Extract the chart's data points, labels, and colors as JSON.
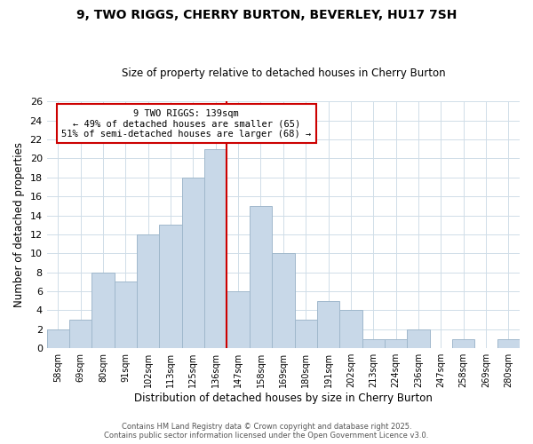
{
  "title": "9, TWO RIGGS, CHERRY BURTON, BEVERLEY, HU17 7SH",
  "subtitle": "Size of property relative to detached houses in Cherry Burton",
  "xlabel": "Distribution of detached houses by size in Cherry Burton",
  "ylabel": "Number of detached properties",
  "bin_labels": [
    "58sqm",
    "69sqm",
    "80sqm",
    "91sqm",
    "102sqm",
    "113sqm",
    "125sqm",
    "136sqm",
    "147sqm",
    "158sqm",
    "169sqm",
    "180sqm",
    "191sqm",
    "202sqm",
    "213sqm",
    "224sqm",
    "236sqm",
    "247sqm",
    "258sqm",
    "269sqm",
    "280sqm"
  ],
  "bar_heights": [
    2,
    3,
    8,
    7,
    12,
    13,
    18,
    21,
    6,
    15,
    10,
    3,
    5,
    4,
    1,
    1,
    2,
    0,
    1,
    0,
    1
  ],
  "bar_color": "#c8d8e8",
  "bar_edge_color": "#a0b8cc",
  "highlight_index": 7,
  "vline_color": "#cc0000",
  "ylim": [
    0,
    26
  ],
  "yticks": [
    0,
    2,
    4,
    6,
    8,
    10,
    12,
    14,
    16,
    18,
    20,
    22,
    24,
    26
  ],
  "annotation_line1": "9 TWO RIGGS: 139sqm",
  "annotation_line2": "← 49% of detached houses are smaller (65)",
  "annotation_line3": "51% of semi-detached houses are larger (68) →",
  "annotation_box_edge": "#cc0000",
  "footer_line1": "Contains HM Land Registry data © Crown copyright and database right 2025.",
  "footer_line2": "Contains public sector information licensed under the Open Government Licence v3.0.",
  "background_color": "#ffffff",
  "grid_color": "#d0dde8"
}
